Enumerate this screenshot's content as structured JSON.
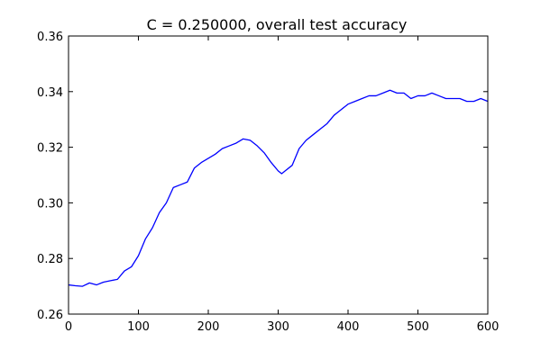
{
  "chart_data": {
    "type": "line",
    "title": "C = 0.250000, overall test accuracy",
    "xlabel": "",
    "ylabel": "",
    "xlim": [
      0,
      600
    ],
    "ylim": [
      0.26,
      0.36
    ],
    "xticks": [
      0,
      100,
      200,
      300,
      400,
      500,
      600
    ],
    "xtick_labels": [
      "0",
      "100",
      "200",
      "300",
      "400",
      "500",
      "600"
    ],
    "yticks": [
      0.26,
      0.28,
      0.3,
      0.32,
      0.34,
      0.36
    ],
    "ytick_labels": [
      "0.26",
      "0.28",
      "0.30",
      "0.32",
      "0.34",
      "0.36"
    ],
    "grid": false,
    "line_color": "#0000ff",
    "series": [
      {
        "x": [
          0,
          10,
          20,
          30,
          40,
          50,
          60,
          70,
          80,
          90,
          100,
          110,
          120,
          130,
          140,
          150,
          160,
          170,
          180,
          190,
          200,
          210,
          220,
          230,
          240,
          250,
          260,
          270,
          280,
          290,
          300,
          305,
          310,
          320,
          330,
          340,
          350,
          360,
          370,
          380,
          390,
          400,
          410,
          420,
          430,
          440,
          450,
          460,
          470,
          480,
          490,
          500,
          510,
          520,
          530,
          540,
          550,
          560,
          570,
          580,
          590,
          600
        ],
        "y": [
          0.2705,
          0.2702,
          0.27,
          0.2712,
          0.2705,
          0.2715,
          0.272,
          0.2725,
          0.2755,
          0.277,
          0.281,
          0.287,
          0.291,
          0.2965,
          0.3,
          0.3055,
          0.3065,
          0.3075,
          0.3125,
          0.3145,
          0.316,
          0.3175,
          0.3195,
          0.3205,
          0.3215,
          0.323,
          0.3225,
          0.3205,
          0.318,
          0.3145,
          0.3115,
          0.3105,
          0.3115,
          0.3135,
          0.3195,
          0.3225,
          0.3245,
          0.3265,
          0.3285,
          0.3315,
          0.3335,
          0.3355,
          0.3365,
          0.3375,
          0.3385,
          0.3385,
          0.3395,
          0.3405,
          0.3395,
          0.3395,
          0.3375,
          0.3385,
          0.3385,
          0.3395,
          0.3385,
          0.3375,
          0.3375,
          0.3375,
          0.3365,
          0.3365,
          0.3375,
          0.3365
        ]
      }
    ]
  }
}
